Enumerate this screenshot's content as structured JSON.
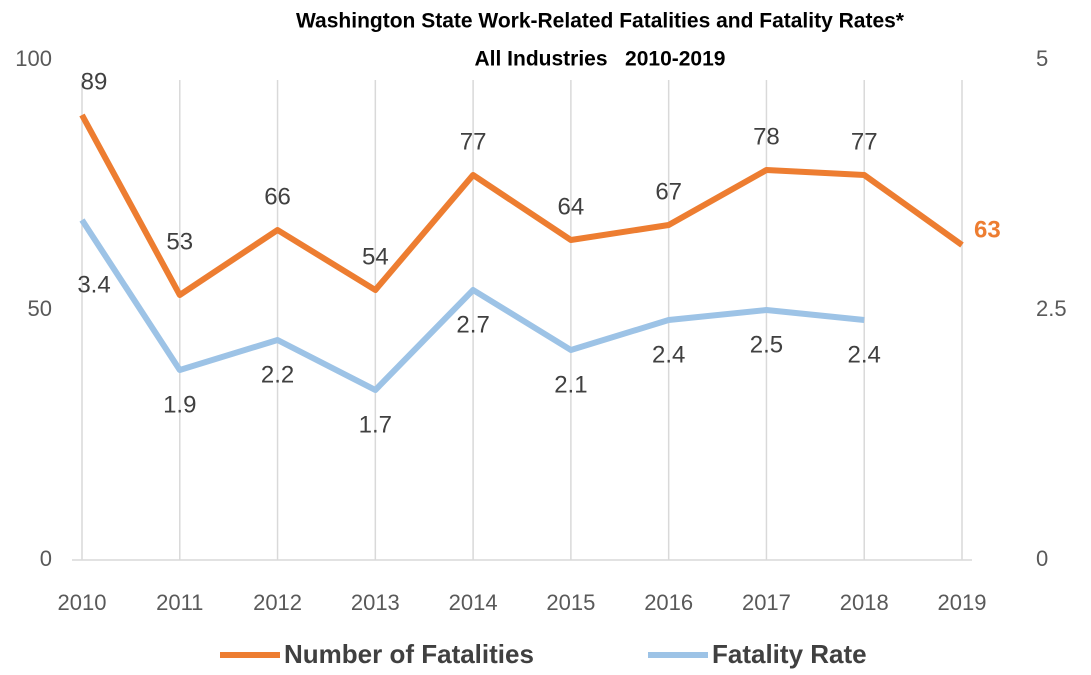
{
  "chart_data": {
    "type": "line",
    "title": "Washington State Work-Related Fatalities and Fatality Rates*",
    "subtitle": "All Industries   2010-2019",
    "categories": [
      "2010",
      "2011",
      "2012",
      "2013",
      "2014",
      "2015",
      "2016",
      "2017",
      "2018",
      "2019"
    ],
    "series": [
      {
        "name": "Number of Fatalities",
        "color": "#ed7d31",
        "values": [
          89,
          53,
          66,
          54,
          77,
          64,
          67,
          78,
          77,
          63
        ]
      },
      {
        "name": "Fatality Rate",
        "color": "#9dc3e6",
        "axis": "y2",
        "values": [
          3.4,
          1.9,
          2.2,
          1.7,
          2.7,
          2.1,
          2.4,
          2.5,
          2.4,
          null
        ]
      }
    ],
    "ylim": [
      0,
      100
    ],
    "yticks": [
      0,
      50,
      100
    ],
    "y2lim": [
      0,
      5
    ],
    "y2ticks": [
      0,
      2.5,
      5
    ],
    "legend": "bottom"
  }
}
